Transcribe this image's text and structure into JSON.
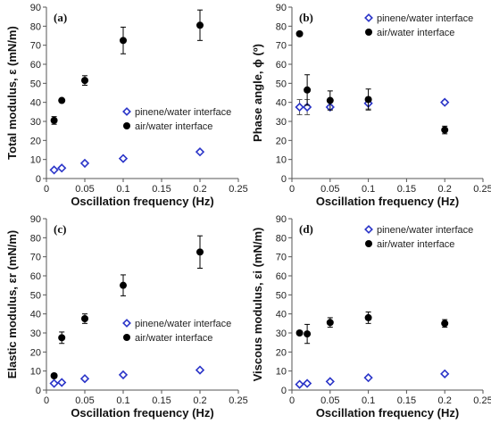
{
  "figure": {
    "panels": [
      {
        "label": "(a)",
        "ylabel": "Total modulus, ε (mN/m)",
        "xlabel": "Oscillation frequency (Hz)",
        "legend": [
          "pinene/water interface",
          "air/water interface"
        ],
        "legend_placement": "lower-right"
      },
      {
        "label": "(b)",
        "ylabel": "Phase angle, ϕ (º)",
        "xlabel": "Oscillation frequency (Hz)",
        "legend": [
          "pinene/water interface",
          "air/water interface"
        ],
        "legend_placement": "top-right"
      },
      {
        "label": "(c)",
        "ylabel": "Elastic modulus, εr (mN/m)",
        "xlabel": "Oscillation frequency (Hz)",
        "legend": [
          "pinene/water interface",
          "air/water interface"
        ],
        "legend_placement": "lower-right"
      },
      {
        "label": "(d)",
        "ylabel": "Viscous modulus, εi (mN/m)",
        "xlabel": "Oscillation frequency (Hz)",
        "legend": [
          "pinene/water interface",
          "air/water interface"
        ],
        "legend_placement": "top-right"
      }
    ]
  },
  "chart_data": [
    {
      "type": "scatter",
      "xlim": [
        0,
        0.25
      ],
      "ylim": [
        0,
        90
      ],
      "xticks": [
        0,
        0.05,
        0.1,
        0.15,
        0.2,
        0.25
      ],
      "yticks": [
        0,
        10,
        20,
        30,
        40,
        50,
        60,
        70,
        80,
        90
      ],
      "grid": false,
      "series": [
        {
          "name": "pinene/water interface",
          "marker": "open-diamond",
          "color": "#2a34c8",
          "x": [
            0.01,
            0.02,
            0.05,
            0.1,
            0.2
          ],
          "y": [
            4.5,
            5.5,
            8,
            10.5,
            14
          ],
          "err": [
            0,
            0,
            0,
            0,
            0
          ]
        },
        {
          "name": "air/water interface",
          "marker": "filled-circle",
          "color": "#000000",
          "x": [
            0.01,
            0.02,
            0.05,
            0.1,
            0.2
          ],
          "y": [
            30.5,
            41,
            51.5,
            72.5,
            80.5
          ],
          "err": [
            2,
            0.5,
            2.5,
            7,
            8
          ]
        }
      ]
    },
    {
      "type": "scatter",
      "xlim": [
        0,
        0.25
      ],
      "ylim": [
        0,
        90
      ],
      "xticks": [
        0,
        0.05,
        0.1,
        0.15,
        0.2,
        0.25
      ],
      "yticks": [
        0,
        10,
        20,
        30,
        40,
        50,
        60,
        70,
        80,
        90
      ],
      "grid": false,
      "series": [
        {
          "name": "pinene/water interface",
          "marker": "open-diamond",
          "color": "#2a34c8",
          "x": [
            0.01,
            0.02,
            0.05,
            0.1,
            0.2
          ],
          "y": [
            37.5,
            37.5,
            37.5,
            39.5,
            40
          ],
          "err": [
            4,
            4,
            1,
            3,
            1
          ]
        },
        {
          "name": "air/water interface",
          "marker": "filled-circle",
          "color": "#000000",
          "x": [
            0.01,
            0.02,
            0.05,
            0.1,
            0.2
          ],
          "y": [
            76,
            46.5,
            41,
            41.5,
            25.5
          ],
          "err": [
            0,
            8,
            5,
            5.5,
            2
          ]
        }
      ]
    },
    {
      "type": "scatter",
      "xlim": [
        0,
        0.25
      ],
      "ylim": [
        0,
        90
      ],
      "xticks": [
        0,
        0.05,
        0.1,
        0.15,
        0.2,
        0.25
      ],
      "yticks": [
        0,
        10,
        20,
        30,
        40,
        50,
        60,
        70,
        80,
        90
      ],
      "grid": false,
      "series": [
        {
          "name": "pinene/water interface",
          "marker": "open-diamond",
          "color": "#2a34c8",
          "x": [
            0.01,
            0.02,
            0.05,
            0.1,
            0.2
          ],
          "y": [
            3.5,
            4,
            6,
            8,
            10.5
          ],
          "err": [
            0,
            0,
            0,
            0,
            0
          ]
        },
        {
          "name": "air/water interface",
          "marker": "filled-circle",
          "color": "#000000",
          "x": [
            0.01,
            0.02,
            0.05,
            0.1,
            0.2
          ],
          "y": [
            7.5,
            27.5,
            37.5,
            55,
            72.5
          ],
          "err": [
            1,
            3,
            2.5,
            5.5,
            8.5
          ]
        }
      ]
    },
    {
      "type": "scatter",
      "xlim": [
        0,
        0.25
      ],
      "ylim": [
        0,
        90
      ],
      "xticks": [
        0,
        0.05,
        0.1,
        0.15,
        0.2,
        0.25
      ],
      "yticks": [
        0,
        10,
        20,
        30,
        40,
        50,
        60,
        70,
        80,
        90
      ],
      "grid": false,
      "series": [
        {
          "name": "pinene/water interface",
          "marker": "open-diamond",
          "color": "#2a34c8",
          "x": [
            0.01,
            0.02,
            0.05,
            0.1,
            0.2
          ],
          "y": [
            3,
            3.5,
            4.5,
            6.5,
            8.5
          ],
          "err": [
            0,
            0,
            0,
            0,
            0
          ]
        },
        {
          "name": "air/water interface",
          "marker": "filled-circle",
          "color": "#000000",
          "x": [
            0.01,
            0.02,
            0.05,
            0.1,
            0.2
          ],
          "y": [
            30,
            29.5,
            35.5,
            38,
            35
          ],
          "err": [
            0.5,
            5,
            2.5,
            3,
            2
          ]
        }
      ]
    }
  ]
}
